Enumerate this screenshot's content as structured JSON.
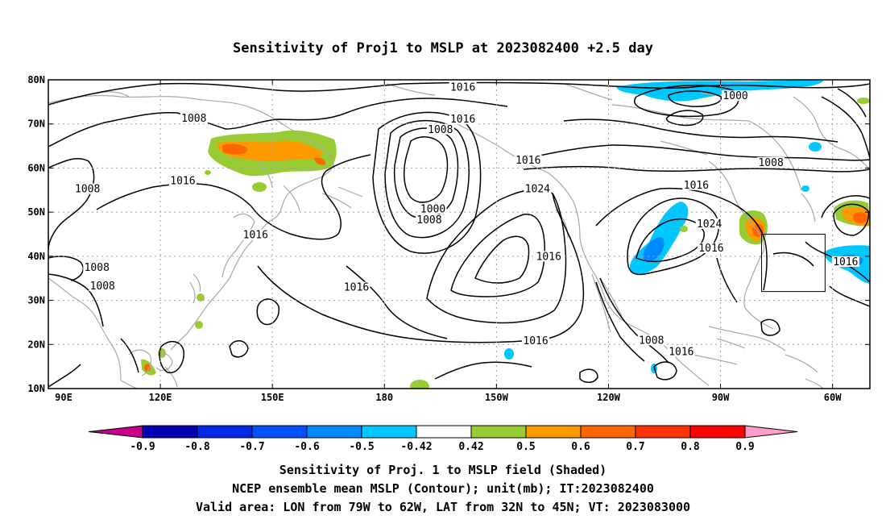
{
  "title": "Sensitivity of Proj1 to MSLP at 2023082400 +2.5 day",
  "map": {
    "lon_range": [
      90,
      310
    ],
    "lat_range": [
      10,
      80
    ],
    "lon_ticks": [
      {
        "lon": 90,
        "label": "90E"
      },
      {
        "lon": 120,
        "label": "120E"
      },
      {
        "lon": 150,
        "label": "150E"
      },
      {
        "lon": 180,
        "label": "180"
      },
      {
        "lon": 210,
        "label": "150W"
      },
      {
        "lon": 240,
        "label": "120W"
      },
      {
        "lon": 270,
        "label": "90W"
      },
      {
        "lon": 300,
        "label": "60W"
      }
    ],
    "lat_ticks": [
      {
        "lat": 10,
        "label": "10N"
      },
      {
        "lat": 20,
        "label": "20N"
      },
      {
        "lat": 30,
        "label": "30N"
      },
      {
        "lat": 40,
        "label": "40N"
      },
      {
        "lat": 50,
        "label": "50N"
      },
      {
        "lat": 60,
        "label": "60N"
      },
      {
        "lat": 70,
        "label": "70N"
      },
      {
        "lat": 80,
        "label": "80N"
      }
    ],
    "valid_area": {
      "lon": [
        281,
        298
      ],
      "lat": [
        32,
        45
      ]
    },
    "contour_labels": [
      {
        "text": "1016",
        "lon": 201,
        "lat": 78.3
      },
      {
        "text": "1008",
        "lon": 129,
        "lat": 71.2
      },
      {
        "text": "1016",
        "lon": 201,
        "lat": 71.0
      },
      {
        "text": "1008",
        "lon": 195,
        "lat": 68.7
      },
      {
        "text": "1016",
        "lon": 218.5,
        "lat": 61.7
      },
      {
        "text": "1016",
        "lon": 126,
        "lat": 57.1
      },
      {
        "text": "1008",
        "lon": 100.5,
        "lat": 55.2
      },
      {
        "text": "1024",
        "lon": 221,
        "lat": 55.2
      },
      {
        "text": "1000",
        "lon": 193,
        "lat": 50.7
      },
      {
        "text": "1016",
        "lon": 263.5,
        "lat": 56.1
      },
      {
        "text": "1008",
        "lon": 283.5,
        "lat": 61.2
      },
      {
        "text": "1000",
        "lon": 274,
        "lat": 76.3
      },
      {
        "text": "1024",
        "lon": 267,
        "lat": 47.3
      },
      {
        "text": "1008",
        "lon": 192,
        "lat": 48.2
      },
      {
        "text": "1016",
        "lon": 145.5,
        "lat": 44.8
      },
      {
        "text": "1016",
        "lon": 267.5,
        "lat": 41.8
      },
      {
        "text": "1016",
        "lon": 224,
        "lat": 39.9
      },
      {
        "text": "1008",
        "lon": 103,
        "lat": 37.4
      },
      {
        "text": "1016",
        "lon": 303.5,
        "lat": 38.7
      },
      {
        "text": "1008",
        "lon": 104.5,
        "lat": 33.2
      },
      {
        "text": "1016",
        "lon": 172.5,
        "lat": 32.9
      },
      {
        "text": "1016",
        "lon": 220.5,
        "lat": 20.8
      },
      {
        "text": "1008",
        "lon": 251.5,
        "lat": 20.9
      },
      {
        "text": "1016",
        "lon": 259.5,
        "lat": 18.3
      }
    ],
    "colors": {
      "coast": "#a8a8a8",
      "contour": "#000000",
      "grid": "#a0a0a0",
      "c_05": "#99cc33",
      "c_06": "#ff9900",
      "c_07": "#ff6600",
      "c_08": "#ff3300",
      "c_n05": "#00c8ff",
      "c_n06": "#0088ff"
    }
  },
  "colorbar": {
    "colors": [
      "#c8008c",
      "#0000b4",
      "#0028e6",
      "#0050ff",
      "#0088ff",
      "#00c8ff",
      "#ffffff",
      "#99cc33",
      "#ff9900",
      "#ff6600",
      "#ff3300",
      "#ff0000",
      "#ff9ec8"
    ],
    "labels": [
      "-0.9",
      "-0.8",
      "-0.7",
      "-0.6",
      "-0.5",
      "-0.42",
      "0.42",
      "0.5",
      "0.6",
      "0.7",
      "0.8",
      "0.9"
    ]
  },
  "footer": {
    "line1": "Sensitivity of Proj. 1 to MSLP field (Shaded)",
    "line2": "NCEP ensemble mean MSLP (Contour); unit(mb); IT:2023082400",
    "line3": "Valid area: LON from 79W to 62W, LAT from 32N to 45N; VT: 2023083000"
  }
}
